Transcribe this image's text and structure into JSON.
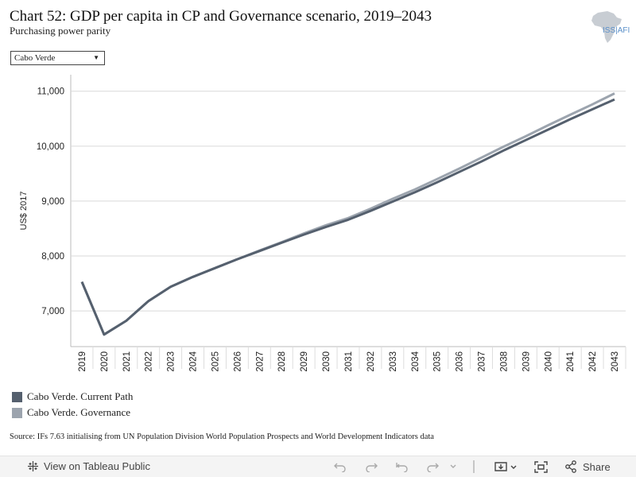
{
  "header": {
    "title": "Chart 52: GDP per capita in CP and Governance scenario, 2019–2043",
    "subtitle": "Purchasing power parity",
    "logo_text": "ISS|AFI"
  },
  "filter": {
    "selected": "Cabo Verde",
    "arrow": "▼"
  },
  "colors": {
    "current_path": "#55606e",
    "governance": "#9ca4ae",
    "grid": "#d9d9d9"
  },
  "chart_data": {
    "type": "line",
    "title": "Chart 52: GDP per capita in CP and Governance scenario, 2019–2043",
    "subtitle": "Purchasing power parity",
    "ylabel": "US$ 2017",
    "xlabel": "",
    "ylim": [
      6350,
      11300
    ],
    "yticks": [
      7000,
      8000,
      9000,
      10000,
      11000
    ],
    "ytick_labels": [
      "7,000",
      "8,000",
      "9,000",
      "10,000",
      "11,000"
    ],
    "grid": true,
    "legend_position": "bottom-left",
    "x": [
      "2019",
      "2020",
      "2021",
      "2022",
      "2023",
      "2024",
      "2025",
      "2026",
      "2027",
      "2028",
      "2029",
      "2030",
      "2031",
      "2032",
      "2033",
      "2034",
      "2035",
      "2036",
      "2037",
      "2038",
      "2039",
      "2040",
      "2041",
      "2042",
      "2043"
    ],
    "series": [
      {
        "name": "Cabo Verde. Current Path",
        "values": [
          7530,
          6570,
          6820,
          7180,
          7440,
          7620,
          7780,
          7940,
          8090,
          8240,
          8390,
          8530,
          8660,
          8820,
          8990,
          9160,
          9340,
          9530,
          9720,
          9920,
          10110,
          10300,
          10490,
          10670,
          10850
        ]
      },
      {
        "name": "Cabo Verde. Governance",
        "values": [
          7530,
          6570,
          6820,
          7180,
          7440,
          7620,
          7780,
          7940,
          8100,
          8250,
          8410,
          8560,
          8690,
          8860,
          9040,
          9210,
          9400,
          9590,
          9790,
          9990,
          10180,
          10380,
          10570,
          10760,
          10960
        ]
      }
    ]
  },
  "legend": [
    {
      "label": "Cabo Verde. Current Path"
    },
    {
      "label": "Cabo Verde. Governance"
    }
  ],
  "source": "Source: IFs 7.63 initialising from UN Population Division World Population Prospects and World Development Indicators data",
  "toolbar": {
    "view_label": "View on Tableau Public",
    "share_label": "Share"
  }
}
